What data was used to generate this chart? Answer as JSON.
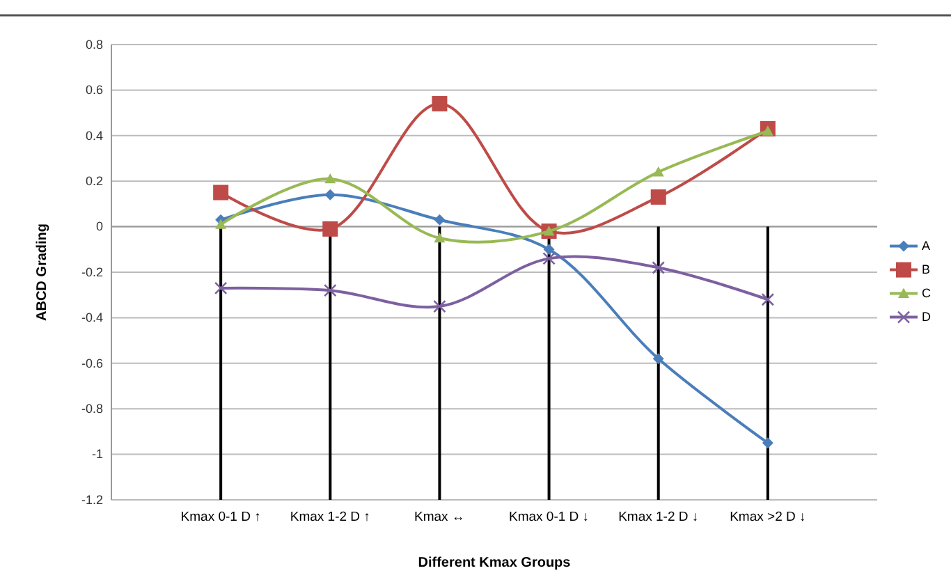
{
  "chart_data": {
    "type": "line",
    "xlabel": "Different Kmax Groups",
    "ylabel": "ABCD Grading",
    "categories": [
      null,
      "Kmax 0-1 D ↑",
      "Kmax 1-2 D ↑",
      "Kmax ↔",
      "Kmax 0-1 D ↓",
      "Kmax 1-2 D ↓",
      "Kmax >2 D ↓",
      null
    ],
    "series": [
      {
        "name": "A",
        "color": "#4a7ebb",
        "marker": "diamond",
        "values": [
          null,
          0.03,
          0.14,
          0.03,
          -0.1,
          -0.58,
          -0.95,
          null
        ]
      },
      {
        "name": "B",
        "color": "#be4b48",
        "marker": "square",
        "values": [
          null,
          0.15,
          -0.01,
          0.54,
          -0.02,
          0.13,
          0.43,
          null
        ]
      },
      {
        "name": "C",
        "color": "#98b954",
        "marker": "triangle",
        "values": [
          null,
          0.01,
          0.21,
          -0.05,
          -0.02,
          0.24,
          0.42,
          null
        ]
      },
      {
        "name": "D",
        "color": "#7d60a0",
        "marker": "cross",
        "values": [
          null,
          -0.27,
          -0.28,
          -0.35,
          -0.14,
          -0.18,
          -0.32,
          null
        ]
      }
    ],
    "ylim": [
      -1.2,
      0.8
    ],
    "yticks": [
      -1.2,
      -1,
      -0.8,
      -0.6,
      -0.4,
      -0.2,
      0,
      0.2,
      0.4,
      0.6,
      0.8
    ],
    "grid": "y",
    "legend": "right",
    "ref_lines": [
      {
        "axis": "x",
        "value": "Kmax 0-1 D ↑",
        "color": "#000000"
      },
      {
        "axis": "x",
        "value": "Kmax 1-2 D ↑",
        "color": "#000000"
      },
      {
        "axis": "x",
        "value": "Kmax ↔",
        "color": "#000000"
      },
      {
        "axis": "x",
        "value": "Kmax 0-1 D ↓",
        "color": "#000000"
      },
      {
        "axis": "x",
        "value": "Kmax 1-2 D ↓",
        "color": "#000000"
      },
      {
        "axis": "x",
        "value": "Kmax >2 D ↓",
        "color": "#000000"
      }
    ]
  }
}
